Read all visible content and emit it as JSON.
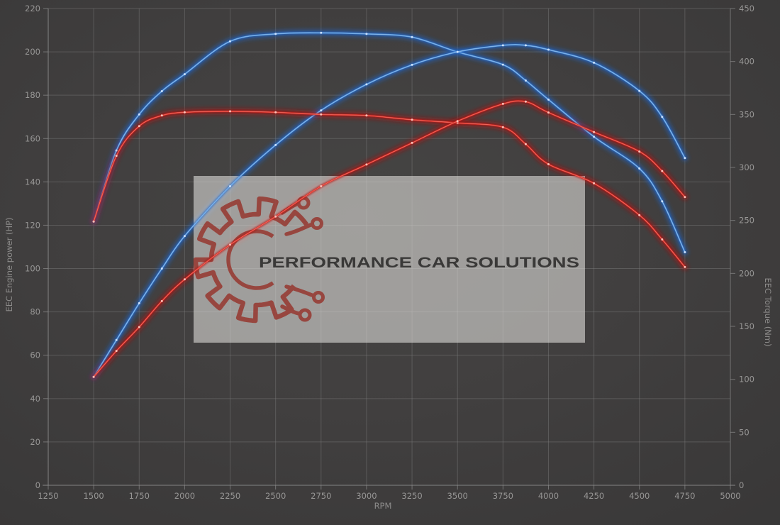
{
  "chart_data": {
    "type": "line",
    "description": "Dyno run graph: engine power and torque vs RPM, tuned (blue) vs original (red)",
    "x_axis": {
      "title": "RPM",
      "min": 1250,
      "max": 5000,
      "ticks": [
        1250,
        1500,
        1750,
        2000,
        2250,
        2500,
        2750,
        3000,
        3250,
        3500,
        3750,
        4000,
        4250,
        4500,
        4750,
        5000
      ]
    },
    "y_axis_left": {
      "title": "EEC Engine power (HP)",
      "min": 0,
      "max": 220,
      "ticks": [
        0,
        20,
        40,
        60,
        80,
        100,
        120,
        140,
        160,
        180,
        200,
        220
      ]
    },
    "y_axis_right": {
      "title": "EEC Torque (Nm)",
      "min": 0,
      "max": 450,
      "ticks": [
        0,
        50,
        100,
        150,
        200,
        250,
        300,
        350,
        400,
        450
      ]
    },
    "grid": true,
    "legend": "none",
    "rpm": [
      1500,
      1625,
      1750,
      1875,
      2000,
      2250,
      2500,
      2750,
      3000,
      3250,
      3500,
      3750,
      3875,
      4000,
      4250,
      4500,
      4625,
      4750
    ],
    "series": [
      {
        "name": "tuned-torque",
        "axis": "right",
        "unit": "Nm",
        "color_core": "#5b9bde",
        "color_glow": "#1e62c4",
        "color_marker": "#cfe4ff",
        "values": [
          249,
          316,
          350,
          372,
          388,
          419,
          426,
          427,
          426,
          423,
          409,
          397,
          382,
          364,
          329,
          299,
          268,
          220
        ]
      },
      {
        "name": "tuned-power",
        "axis": "left",
        "unit": "HP",
        "color_core": "#5b9bde",
        "color_glow": "#1e62c4",
        "color_marker": "#cfe4ff",
        "values": [
          50,
          67,
          84,
          100,
          115,
          138,
          157,
          173,
          185,
          194,
          200,
          203,
          203,
          201,
          195,
          182,
          170,
          151
        ]
      },
      {
        "name": "original-torque",
        "axis": "right",
        "unit": "Nm",
        "color_core": "#e23329",
        "color_glow": "#a81711",
        "color_marker": "#ffc6bd",
        "values": [
          249,
          311,
          339,
          349,
          352,
          353,
          352,
          350,
          349,
          345,
          342,
          338,
          322,
          303,
          285,
          255,
          232,
          206
        ]
      },
      {
        "name": "original-power",
        "axis": "left",
        "unit": "HP",
        "color_core": "#e23329",
        "color_glow": "#a81711",
        "color_marker": "#ffc6bd",
        "values": [
          50,
          62,
          73,
          85,
          95,
          111,
          124,
          138,
          148,
          158,
          168,
          176,
          177,
          172,
          163,
          154,
          145,
          133
        ]
      }
    ],
    "peaks": {
      "tuned_power_hp": 203,
      "tuned_torque_nm": 427,
      "original_power_hp": 177,
      "original_torque_nm": 353
    }
  },
  "watermark": {
    "text": "PERFORMANCE CAR SOLUTIONS",
    "box_fill": "#DEDCD9",
    "box_opacity": 0.6,
    "logo_color": "#963129",
    "logo_opacity": 0.8,
    "text_color": "#333231"
  },
  "theme": {
    "background_center": "#464544",
    "background_edge": "#383737",
    "gridline_color": "#828282",
    "axis_line_color": "#8d8d8d",
    "tick_label_color": "#979695"
  }
}
